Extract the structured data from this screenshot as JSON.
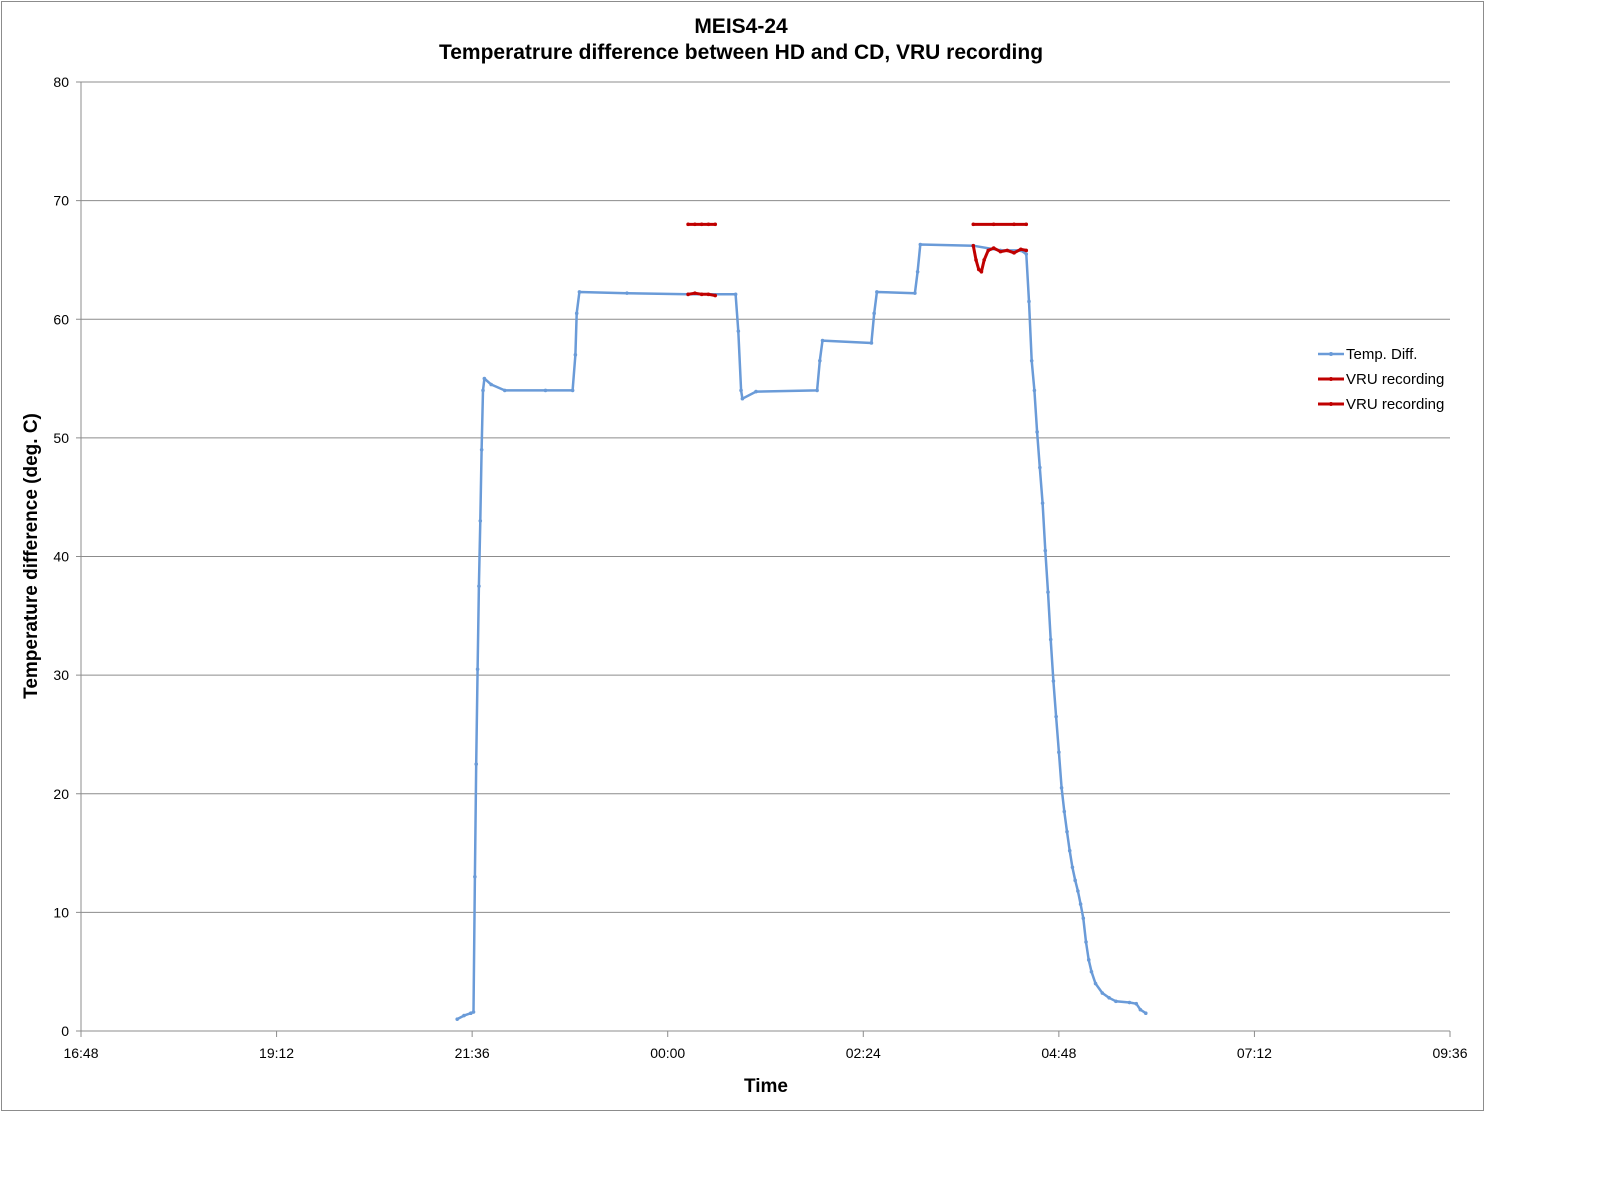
{
  "chart_data": {
    "type": "line",
    "title": "MEIS4-24",
    "subtitle": "Temperatrure difference between HD and CD, VRU recording",
    "xlabel": "Time",
    "ylabel": "Temperature difference (deg. C)",
    "xlim": [
      "16:48",
      "09:36"
    ],
    "ylim": [
      0,
      80
    ],
    "x_ticks": [
      "16:48",
      "19:12",
      "21:36",
      "00:00",
      "02:24",
      "04:48",
      "07:12",
      "09:36"
    ],
    "y_ticks": [
      "0",
      "10",
      "20",
      "30",
      "40",
      "50",
      "60",
      "70",
      "80"
    ],
    "grid": "horizontal",
    "legend_position": "right",
    "colors": {
      "temp_diff": "#6a9bd8",
      "vru": "#c00000",
      "grid": "#8c8c8c"
    },
    "series": [
      {
        "name": "Temp. Diff.",
        "color": "#6a9bd8",
        "points": [
          [
            "21:25",
            1.0
          ],
          [
            "21:30",
            1.3
          ],
          [
            "21:35",
            1.5
          ],
          [
            "21:37",
            1.6
          ],
          [
            "21:38",
            13.0
          ],
          [
            "21:39",
            22.5
          ],
          [
            "21:40",
            30.5
          ],
          [
            "21:41",
            37.5
          ],
          [
            "21:42",
            43.0
          ],
          [
            "21:43",
            49.0
          ],
          [
            "21:44",
            54.0
          ],
          [
            "21:45",
            55.0
          ],
          [
            "21:50",
            54.5
          ],
          [
            "22:00",
            54.0
          ],
          [
            "22:30",
            54.0
          ],
          [
            "22:50",
            54.0
          ],
          [
            "22:52",
            57.0
          ],
          [
            "22:53",
            60.5
          ],
          [
            "22:55",
            62.3
          ],
          [
            "23:30",
            62.2
          ],
          [
            "00:15",
            62.1
          ],
          [
            "00:50",
            62.1
          ],
          [
            "00:52",
            59.0
          ],
          [
            "00:54",
            54.0
          ],
          [
            "00:55",
            53.3
          ],
          [
            "01:05",
            53.9
          ],
          [
            "01:50",
            54.0
          ],
          [
            "01:52",
            56.5
          ],
          [
            "01:54",
            58.2
          ],
          [
            "02:30",
            58.0
          ],
          [
            "02:32",
            60.5
          ],
          [
            "02:34",
            62.3
          ],
          [
            "03:02",
            62.2
          ],
          [
            "03:04",
            64.0
          ],
          [
            "03:06",
            66.3
          ],
          [
            "03:45",
            66.2
          ],
          [
            "04:05",
            65.8
          ],
          [
            "04:20",
            65.8
          ],
          [
            "04:24",
            65.5
          ],
          [
            "04:26",
            61.5
          ],
          [
            "04:28",
            56.5
          ],
          [
            "04:30",
            54.0
          ],
          [
            "04:32",
            50.5
          ],
          [
            "04:34",
            47.5
          ],
          [
            "04:36",
            44.5
          ],
          [
            "04:38",
            40.5
          ],
          [
            "04:40",
            37.0
          ],
          [
            "04:42",
            33.0
          ],
          [
            "04:44",
            29.5
          ],
          [
            "04:46",
            26.5
          ],
          [
            "04:48",
            23.5
          ],
          [
            "04:50",
            20.5
          ],
          [
            "04:52",
            18.5
          ],
          [
            "04:54",
            16.8
          ],
          [
            "04:56",
            15.2
          ],
          [
            "04:58",
            13.8
          ],
          [
            "05:00",
            12.7
          ],
          [
            "05:02",
            11.8
          ],
          [
            "05:04",
            10.7
          ],
          [
            "05:06",
            9.5
          ],
          [
            "05:08",
            7.5
          ],
          [
            "05:10",
            6.0
          ],
          [
            "05:12",
            5.0
          ],
          [
            "05:15",
            4.0
          ],
          [
            "05:20",
            3.2
          ],
          [
            "05:25",
            2.8
          ],
          [
            "05:30",
            2.5
          ],
          [
            "05:40",
            2.4
          ],
          [
            "05:45",
            2.3
          ],
          [
            "05:48",
            1.8
          ],
          [
            "05:52",
            1.5
          ]
        ]
      },
      {
        "name": "VRU recording",
        "color": "#c00000",
        "points": [
          [
            "00:15",
            62.1
          ],
          [
            "00:20",
            62.2
          ],
          [
            "00:25",
            62.1
          ],
          [
            "00:30",
            62.1
          ],
          [
            "00:35",
            62.0
          ]
        ]
      },
      {
        "name": "VRU recording",
        "color": "#c00000",
        "points": [
          [
            "00:15",
            68.0
          ],
          [
            "00:20",
            68.0
          ],
          [
            "00:25",
            68.0
          ],
          [
            "00:30",
            68.0
          ],
          [
            "00:35",
            68.0
          ]
        ]
      },
      {
        "name": "VRU recording",
        "color": "#c00000",
        "points": [
          [
            "03:45",
            66.2
          ],
          [
            "03:47",
            65.0
          ],
          [
            "03:49",
            64.2
          ],
          [
            "03:51",
            64.0
          ],
          [
            "03:53",
            65.0
          ],
          [
            "03:56",
            65.8
          ],
          [
            "04:00",
            66.0
          ],
          [
            "04:05",
            65.7
          ],
          [
            "04:10",
            65.8
          ],
          [
            "04:15",
            65.6
          ],
          [
            "04:20",
            65.9
          ],
          [
            "04:24",
            65.8
          ]
        ]
      },
      {
        "name": "VRU recording",
        "color": "#c00000",
        "points": [
          [
            "03:45",
            68.0
          ],
          [
            "04:00",
            68.0
          ],
          [
            "04:15",
            68.0
          ],
          [
            "04:24",
            68.0
          ]
        ]
      }
    ],
    "legend": [
      "Temp. Diff.",
      "VRU recording",
      "VRU recording"
    ]
  }
}
